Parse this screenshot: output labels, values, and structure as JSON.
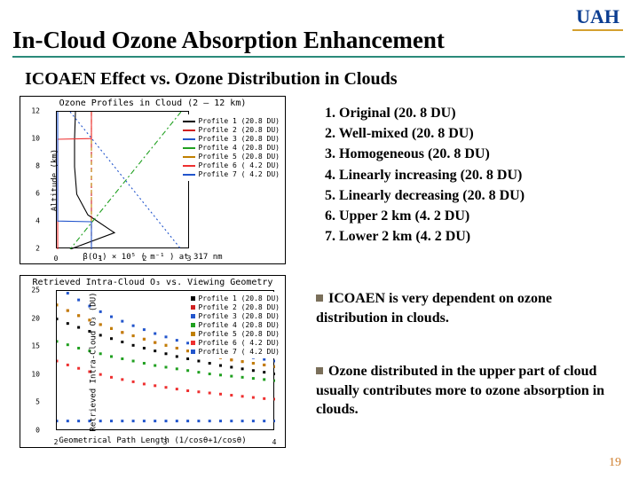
{
  "logo": "UAH",
  "logo_color": "#0b3d91",
  "logo_underline": "#d4a030",
  "title": "In-Cloud Ozone Absorption Enhancement",
  "title_underline": "#2a8a7a",
  "subtitle": "ICOAEN Effect vs. Ozone Distribution in Clouds",
  "page_number": "19",
  "page_number_color": "#d08030",
  "profiles": [
    "1. Original (20. 8 DU)",
    "2. Well-mixed (20. 8 DU)",
    "3. Homogeneous (20. 8 DU)",
    "4. Linearly increasing (20. 8 DU)",
    "5. Linearly decreasing (20. 8 DU)",
    "6. Upper 2 km (4. 2 DU)",
    "7. Lower 2 km (4. 2 DU)"
  ],
  "bullets": [
    "ICOAEN is very dependent on ozone distribution in clouds.",
    "Ozone distributed in the upper part of cloud usually contributes more to ozone absorption in clouds."
  ],
  "chart_top": {
    "type": "line",
    "title": "Ozone Profiles in Cloud (2 – 12 km)",
    "xlabel": "β(O₃) × 10⁵ ( m⁻¹ ) at 317 nm",
    "ylabel": "Altitude (km)",
    "xlim": [
      0,
      3
    ],
    "xticks": [
      0,
      1,
      2,
      3
    ],
    "ylim": [
      2,
      12
    ],
    "yticks": [
      2,
      4,
      6,
      8,
      10,
      12
    ],
    "series_labels": [
      "Profile 1 (20.8 DU)",
      "Profile 2 (20.8 DU)",
      "Profile 3 (20.8 DU)",
      "Profile 4 (20.8 DU)",
      "Profile 5 (20.8 DU)",
      "Profile 6 ( 4.2 DU)",
      "Profile 7 ( 4.2 DU)"
    ],
    "series_colors": [
      "#000000",
      "#d02020",
      "#2255cc",
      "#20a020",
      "#c08000",
      "#ee3030",
      "#2255cc"
    ],
    "series_dash": [
      "0",
      "5,4",
      "2,3",
      "6,3,2,3",
      "4,4",
      "0",
      "0"
    ],
    "line_width": 1.1,
    "background_color": "#ffffff",
    "series_paths": [
      [
        [
          0.42,
          12
        ],
        [
          0.4,
          10
        ],
        [
          0.4,
          8
        ],
        [
          0.45,
          6
        ],
        [
          0.7,
          4.5
        ],
        [
          1.3,
          3.2
        ],
        [
          0.3,
          2.0
        ]
      ],
      [
        [
          0.78,
          12
        ],
        [
          0.78,
          2
        ]
      ],
      [
        [
          0.3,
          12
        ],
        [
          2.8,
          2
        ]
      ],
      [
        [
          2.8,
          12
        ],
        [
          0.3,
          2
        ]
      ],
      [
        [
          0.78,
          12
        ],
        [
          0.78,
          2
        ]
      ],
      [
        [
          0.78,
          12
        ],
        [
          0.78,
          10.05
        ],
        [
          0.02,
          10
        ],
        [
          0.02,
          2
        ]
      ],
      [
        [
          0.02,
          12
        ],
        [
          0.02,
          4.05
        ],
        [
          0.78,
          4
        ],
        [
          0.78,
          2
        ]
      ]
    ]
  },
  "chart_bot": {
    "type": "scatter",
    "title": "Retrieved Intra-Cloud O₃ vs. Viewing Geometry",
    "xlabel": "Geometrical Path Length (1/cosθ+1/cosθ)",
    "ylabel": "Retrieved Intra-Cloud O₃ (DU)",
    "xlim": [
      2,
      4
    ],
    "xticks": [
      2,
      3,
      4
    ],
    "ylim": [
      0,
      25
    ],
    "yticks": [
      0,
      5,
      10,
      15,
      20,
      25
    ],
    "series_labels": [
      "Profile 1 (20.8 DU)",
      "Profile 2 (20.8 DU)",
      "Profile 3 (20.8 DU)",
      "Profile 4 (20.8 DU)",
      "Profile 5 (20.8 DU)",
      "Profile 6 ( 4.2 DU)",
      "Profile 7 ( 4.2 DU)"
    ],
    "series_colors": [
      "#000000",
      "#d02020",
      "#2255cc",
      "#20a020",
      "#c08000",
      "#ee3030",
      "#2255cc"
    ],
    "marker_size": 3,
    "background_color": "#ffffff",
    "x_values": [
      2.0,
      2.1,
      2.2,
      2.3,
      2.4,
      2.5,
      2.6,
      2.7,
      2.8,
      2.9,
      3.0,
      3.1,
      3.2,
      3.3,
      3.4,
      3.5,
      3.6,
      3.7,
      3.8,
      3.9,
      4.0
    ],
    "series_y": [
      [
        20.0,
        19.2,
        18.5,
        17.8,
        17.1,
        16.5,
        15.9,
        15.3,
        14.8,
        14.3,
        13.8,
        13.3,
        12.9,
        12.5,
        12.1,
        11.7,
        11.4,
        11.1,
        10.8,
        10.5,
        10.2
      ],
      [
        22.5,
        21.5,
        20.6,
        19.8,
        19.0,
        18.3,
        17.6,
        17.0,
        16.4,
        15.8,
        15.3,
        14.8,
        14.3,
        13.9,
        13.5,
        13.1,
        12.7,
        12.4,
        12.1,
        11.8,
        11.5
      ],
      [
        26.0,
        24.6,
        23.4,
        22.3,
        21.3,
        20.4,
        19.6,
        18.8,
        18.1,
        17.4,
        16.8,
        16.2,
        15.7,
        15.2,
        14.7,
        14.3,
        13.9,
        13.5,
        13.1,
        12.8,
        12.5
      ],
      [
        16.0,
        15.4,
        14.8,
        14.3,
        13.8,
        13.3,
        12.9,
        12.5,
        12.1,
        11.7,
        11.4,
        11.1,
        10.8,
        10.5,
        10.2,
        10.0,
        9.8,
        9.6,
        9.4,
        9.2,
        9.0
      ],
      [
        22.5,
        21.5,
        20.6,
        19.8,
        19.0,
        18.3,
        17.6,
        17.0,
        16.4,
        15.8,
        15.3,
        14.8,
        14.3,
        13.9,
        13.5,
        13.1,
        12.7,
        12.4,
        12.1,
        11.8,
        11.5
      ],
      [
        12.5,
        11.8,
        11.2,
        10.6,
        10.1,
        9.6,
        9.2,
        8.8,
        8.4,
        8.1,
        7.8,
        7.5,
        7.2,
        7.0,
        6.8,
        6.6,
        6.4,
        6.2,
        6.0,
        5.8,
        5.7
      ],
      [
        1.8,
        1.8,
        1.8,
        1.8,
        1.8,
        1.8,
        1.8,
        1.8,
        1.8,
        1.8,
        1.8,
        1.8,
        1.8,
        1.8,
        1.8,
        1.8,
        1.8,
        1.8,
        1.8,
        1.8,
        1.8
      ]
    ]
  }
}
